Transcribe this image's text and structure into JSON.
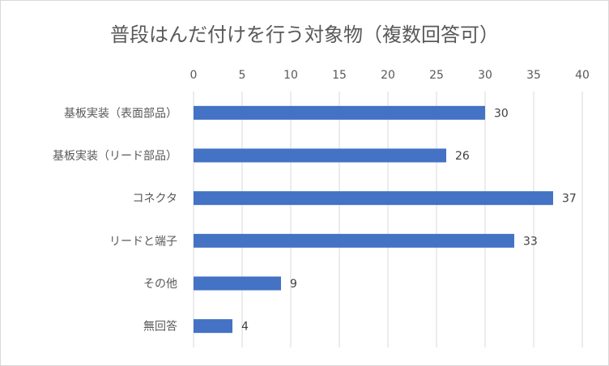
{
  "colors": {
    "bar": "#4472c4",
    "grid": "#d9d9d9",
    "text": "#595959"
  },
  "chart_data": {
    "type": "bar",
    "orientation": "horizontal",
    "title": "普段はんだ付けを行う対象物（複数回答可）",
    "categories": [
      "基板実装（表面部品）",
      "基板実装（リード部品）",
      "コネクタ",
      "リードと端子",
      "その他",
      "無回答"
    ],
    "values": [
      30,
      26,
      37,
      33,
      9,
      4
    ],
    "xlim": [
      0,
      40
    ],
    "ticks": [
      0,
      5,
      10,
      15,
      20,
      25,
      30,
      35,
      40
    ],
    "x_axis_position": "top",
    "grid": true,
    "legend": "none",
    "data_labels": true
  }
}
